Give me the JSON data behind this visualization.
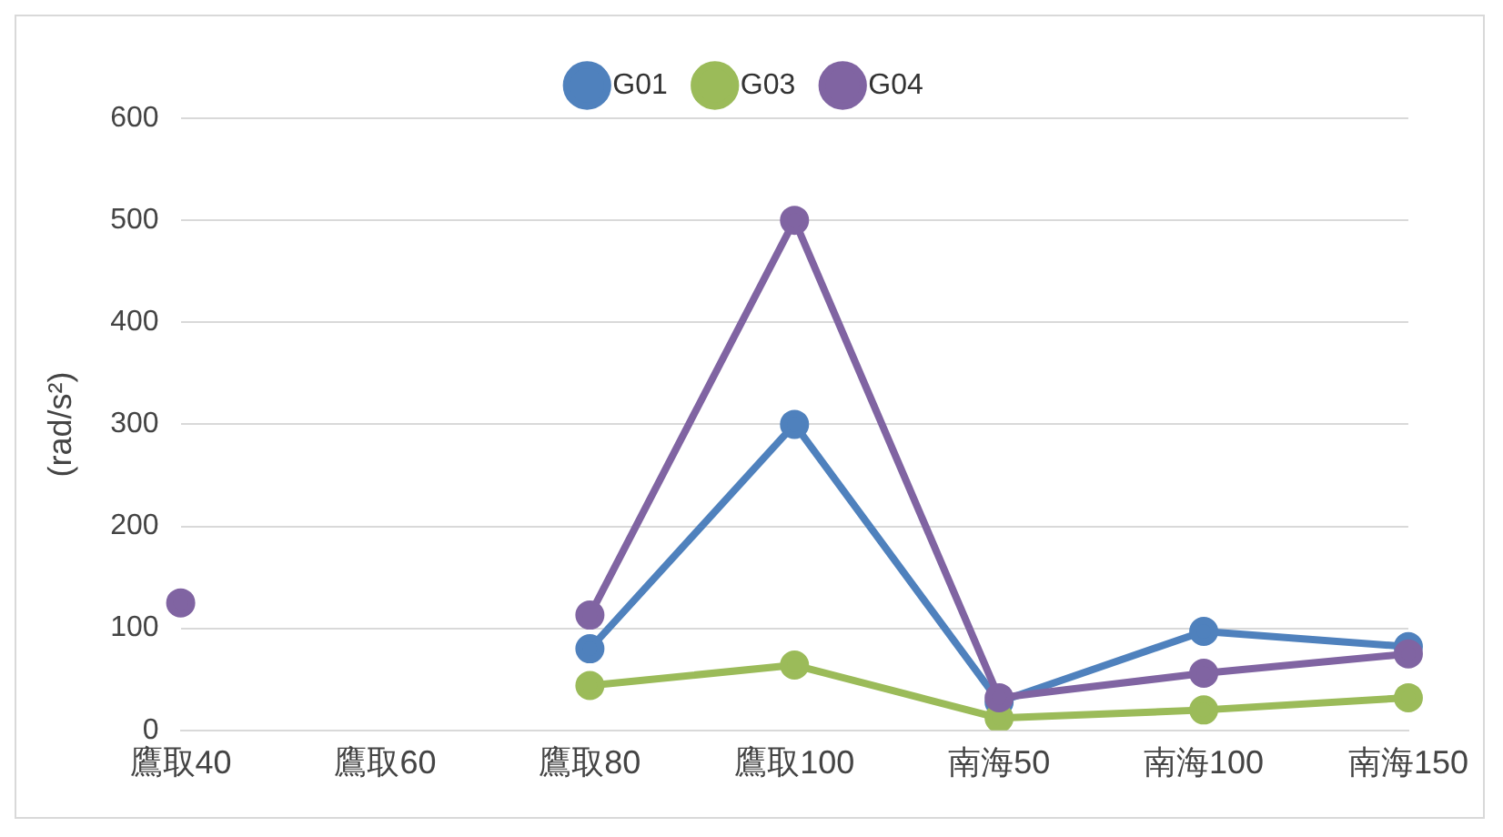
{
  "chart_data": {
    "type": "line",
    "ylabel": "(rad/s²)",
    "categories": [
      "鷹取40",
      "鷹取60",
      "鷹取80",
      "鷹取100",
      "南海50",
      "南海100",
      "南海150"
    ],
    "series": [
      {
        "name": "G01",
        "color": "#4f81bd",
        "values": [
          null,
          null,
          80,
          300,
          28,
          97,
          82
        ]
      },
      {
        "name": "G03",
        "color": "#9bbb59",
        "values": [
          null,
          null,
          44,
          64,
          12,
          20,
          32
        ]
      },
      {
        "name": "G04",
        "color": "#8064a2",
        "values": [
          125,
          null,
          113,
          500,
          32,
          56,
          75
        ]
      }
    ],
    "ylim": [
      0,
      600
    ],
    "yticks": [
      0,
      100,
      200,
      300,
      400,
      500,
      600
    ],
    "grid": "y",
    "legend": "top",
    "marker": "circle",
    "line_style": "solid"
  }
}
